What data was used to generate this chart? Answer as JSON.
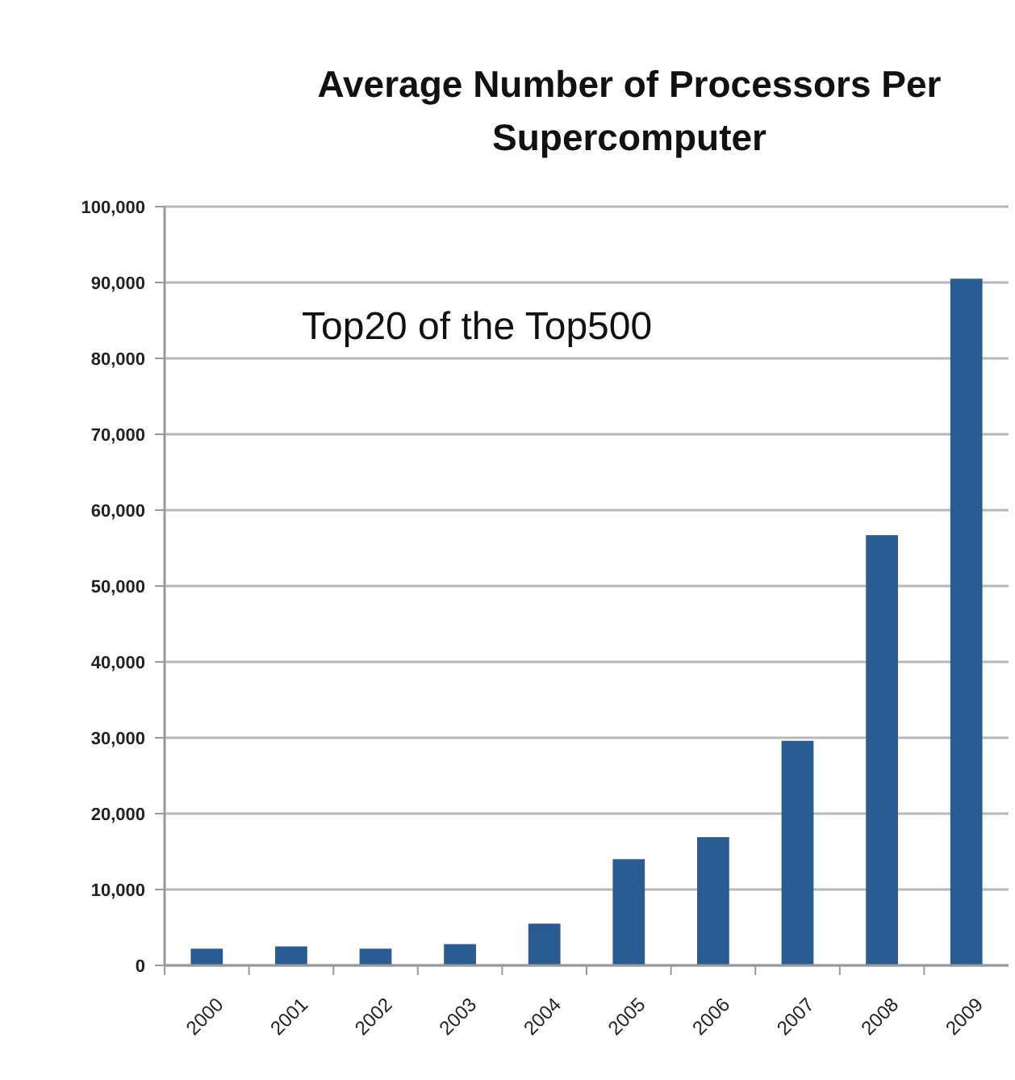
{
  "chart_data": {
    "type": "bar",
    "title": "Average Number of Processors Per Supercomputer",
    "annotations": [
      "Top20 of the Top500"
    ],
    "categories": [
      "2000",
      "2001",
      "2002",
      "2003",
      "2004",
      "2005",
      "2006",
      "2007",
      "2008",
      "2009"
    ],
    "values": [
      2200,
      2500,
      2200,
      2800,
      5500,
      14000,
      16900,
      29600,
      56700,
      90500
    ],
    "color": "#2a5c94",
    "ylim": [
      0,
      100000
    ],
    "yticks": [
      {
        "value": 0,
        "label": "0"
      },
      {
        "value": 10000,
        "label": "10,000"
      },
      {
        "value": 20000,
        "label": "20,000"
      },
      {
        "value": 30000,
        "label": "30,000"
      },
      {
        "value": 40000,
        "label": "40,000"
      },
      {
        "value": 50000,
        "label": "50,000"
      },
      {
        "value": 60000,
        "label": "60,000"
      },
      {
        "value": 70000,
        "label": "70,000"
      },
      {
        "value": 80000,
        "label": "80,000"
      },
      {
        "value": 90000,
        "label": "90,000"
      },
      {
        "value": 100000,
        "label": "100,000"
      }
    ],
    "grid": "y"
  }
}
